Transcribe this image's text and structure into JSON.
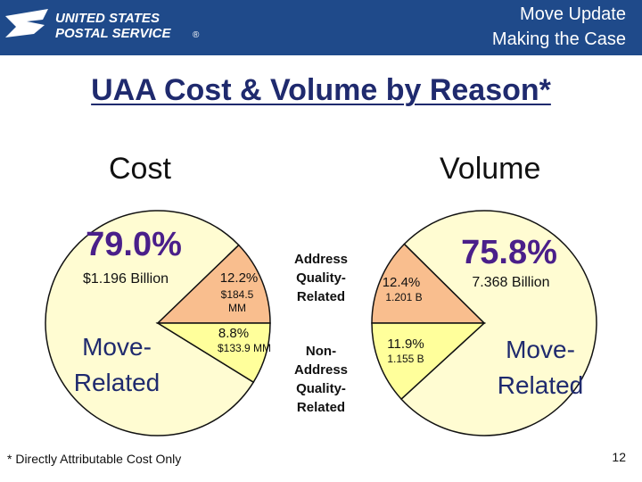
{
  "header": {
    "logo_line1": "UNITED STATES",
    "logo_line2": "POSTAL SERVICE",
    "registered_mark": "®",
    "title_line1": "Move Update",
    "title_line2": "Making the Case"
  },
  "title": "UAA Cost & Volume by Reason*",
  "sections": {
    "cost": "Cost",
    "volume": "Volume"
  },
  "middle_labels": {
    "address_quality": "Address Quality-Related",
    "non_address_quality": "Non-Address Quality-Related"
  },
  "colors": {
    "move": "#fffcd2",
    "address": "#f9be8e",
    "non_address": "#ffff9b",
    "brand": "#1f4a8a",
    "outline": "#111111"
  },
  "chart_data": [
    {
      "type": "pie",
      "name": "Cost",
      "slices": [
        {
          "label": "Move-Related",
          "percent": 79.0,
          "percent_text": "79.0%",
          "value_text": "$1.196 Billion"
        },
        {
          "label": "Address Quality-Related",
          "percent": 12.2,
          "percent_text": "12.2%",
          "value_text": "$184.5 MM"
        },
        {
          "label": "Non-Address Quality-Related",
          "percent": 8.8,
          "percent_text": "8.8%",
          "value_text": "$133.9 MM"
        }
      ]
    },
    {
      "type": "pie",
      "name": "Volume",
      "slices": [
        {
          "label": "Move-Related",
          "percent": 75.8,
          "percent_text": "75.8%",
          "value_text": "7.368 Billion"
        },
        {
          "label": "Address Quality-Related",
          "percent": 12.4,
          "percent_text": "12.4%",
          "value_text": "1.201 B"
        },
        {
          "label": "Non-Address Quality-Related",
          "percent": 11.9,
          "percent_text": "11.9%",
          "value_text": "1.155 B"
        }
      ]
    }
  ],
  "footnote": "* Directly Attributable Cost Only",
  "page_number": "12"
}
